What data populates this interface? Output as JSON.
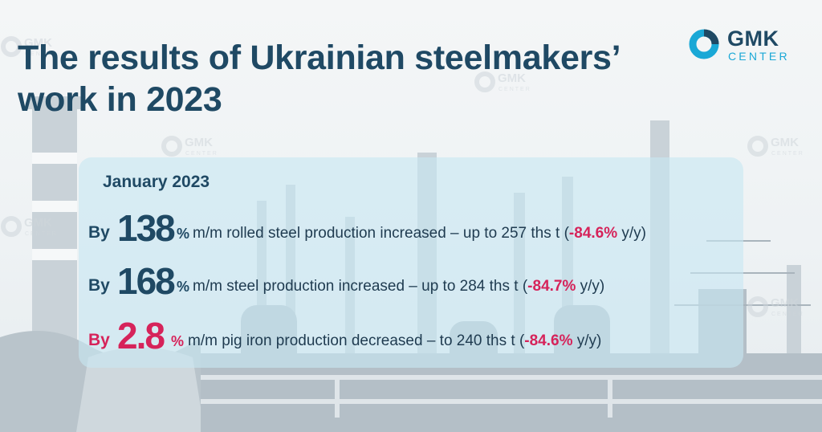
{
  "title": "The results of Ukrainian steelmakers’ work in 2023",
  "logo": {
    "word": "GMK",
    "sub": "CENTER",
    "icon": "gmk-ring-icon",
    "accent": "#1aa8d6",
    "dark": "#1f4964"
  },
  "watermark": {
    "word": "GMK",
    "sub": "CENTER",
    "icon": "gmk-ring-icon"
  },
  "period": "January 2023",
  "rows": [
    {
      "by": "By",
      "value": "138",
      "unit": "%",
      "text_before": "m/m rolled steel production increased – up to 257 ths t (",
      "change": "-84.6%",
      "text_after": " y/y)",
      "highlight": false
    },
    {
      "by": "By",
      "value": "168",
      "unit": "%",
      "text_before": "m/m steel production increased – up to 284 ths t (",
      "change": "-84.7%",
      "text_after": " y/y)",
      "highlight": false
    },
    {
      "by": "By",
      "value": "2.8",
      "unit": "%",
      "text_before": "m/m pig iron production decreased – to 240 ths t (",
      "change": "-84.6%",
      "text_after": " y/y)",
      "highlight": true
    }
  ],
  "colors": {
    "title": "#1f4964",
    "negative": "#d6235a",
    "panel": "#c8e6f2"
  }
}
